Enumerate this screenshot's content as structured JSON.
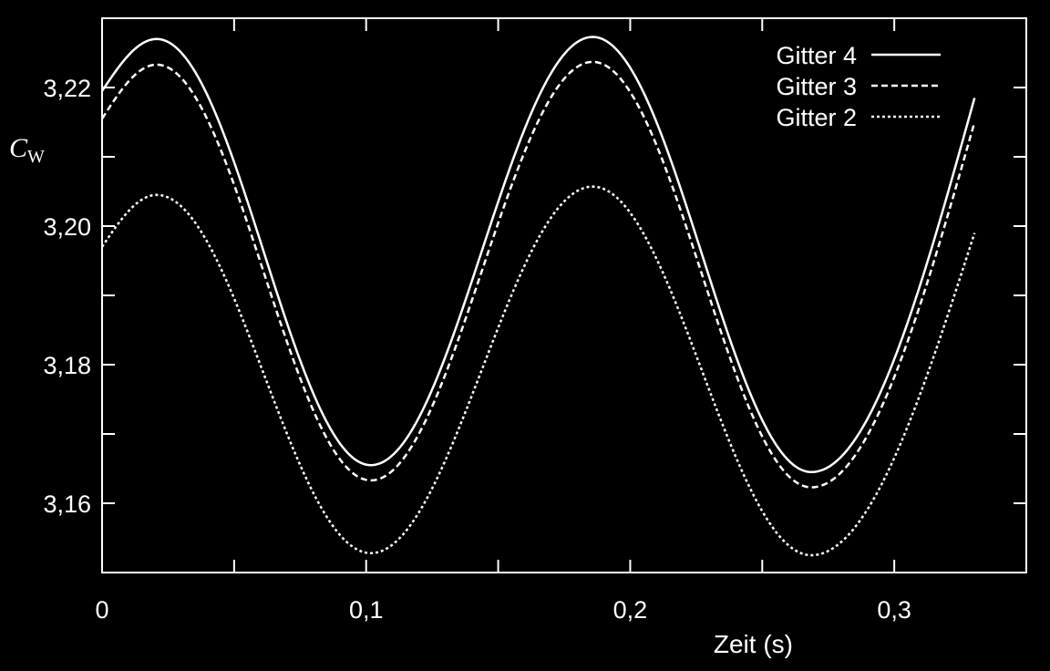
{
  "chart_data": {
    "type": "line",
    "title": "",
    "xlabel": "Zeit (s)",
    "ylabel_main": "C",
    "ylabel_sub": "W",
    "xlim": [
      0,
      0.35
    ],
    "ylim": [
      3.15,
      3.23
    ],
    "xticks": [
      0,
      0.05,
      0.1,
      0.15,
      0.2,
      0.25,
      0.3,
      0.35
    ],
    "xtick_labels": [
      {
        "value": 0,
        "label": "0"
      },
      {
        "value": 0.1,
        "label": "0,1"
      },
      {
        "value": 0.2,
        "label": "0,2"
      },
      {
        "value": 0.3,
        "label": "0,3"
      }
    ],
    "yticks": [
      3.15,
      3.16,
      3.17,
      3.18,
      3.19,
      3.2,
      3.21,
      3.22
    ],
    "ytick_labels": [
      {
        "value": 3.16,
        "label": "3,16"
      },
      {
        "value": 3.18,
        "label": "3,18"
      },
      {
        "value": 3.2,
        "label": "3,20"
      },
      {
        "value": 3.22,
        "label": "3,22"
      }
    ],
    "legend_position": "top-right",
    "grid": false,
    "background": "#000000",
    "foreground": "#ffffff",
    "series": [
      {
        "name": "Gitter 4",
        "dash": "solid",
        "x": [
          0,
          0.0207,
          0.1018,
          0.1858,
          0.2686,
          0.3304
        ],
        "y": [
          3.2195,
          3.227,
          3.1655,
          3.2273,
          3.1645,
          3.2185
        ]
      },
      {
        "name": "Gitter 3",
        "dash": "dashed",
        "x": [
          0,
          0.0207,
          0.1018,
          0.1858,
          0.2686,
          0.3304
        ],
        "y": [
          3.2155,
          3.2233,
          3.1633,
          3.2237,
          3.1623,
          3.215
        ]
      },
      {
        "name": "Gitter 2",
        "dash": "dotted",
        "x": [
          0,
          0.0207,
          0.1018,
          0.1858,
          0.2686,
          0.3304
        ],
        "y": [
          3.197,
          3.2045,
          3.1528,
          3.2057,
          3.1525,
          3.199
        ]
      }
    ]
  }
}
